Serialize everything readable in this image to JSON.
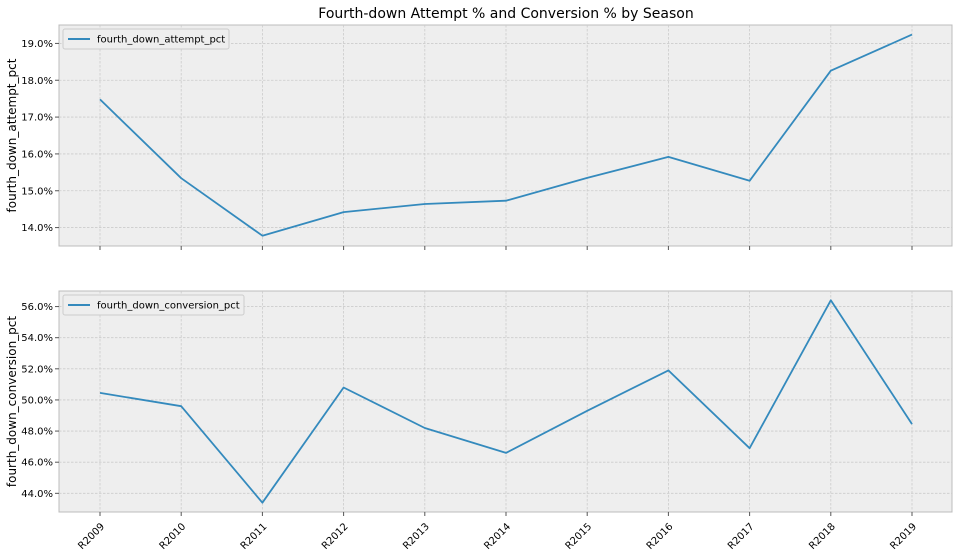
{
  "chart_data": [
    {
      "type": "line",
      "title": "Fourth-down Attempt % and Conversion % by Season",
      "xlabel": "",
      "ylabel": "fourth_down_attempt_pct",
      "categories": [
        "R2009",
        "R2010",
        "R2011",
        "R2012",
        "R2013",
        "R2014",
        "R2015",
        "R2016",
        "R2017",
        "R2018",
        "R2019"
      ],
      "series": [
        {
          "name": "fourth_down_attempt_pct",
          "values": [
            17.48,
            15.34,
            13.78,
            14.42,
            14.64,
            14.73,
            15.35,
            15.92,
            15.27,
            18.26,
            19.24
          ]
        }
      ],
      "ylim": [
        13.5,
        19.5
      ],
      "yticks": [
        14.0,
        15.0,
        16.0,
        17.0,
        18.0,
        19.0
      ],
      "ytick_labels": [
        "14.0%",
        "15.0%",
        "16.0%",
        "17.0%",
        "18.0%",
        "19.0%"
      ],
      "show_xtick_labels": false,
      "legend": "top-left",
      "grid": true,
      "color": "#348abd"
    },
    {
      "type": "line",
      "title": "",
      "xlabel": "",
      "ylabel": "fourth_down_conversion_pct",
      "categories": [
        "R2009",
        "R2010",
        "R2011",
        "R2012",
        "R2013",
        "R2014",
        "R2015",
        "R2016",
        "R2017",
        "R2018",
        "R2019"
      ],
      "series": [
        {
          "name": "fourth_down_conversion_pct",
          "values": [
            50.45,
            49.6,
            43.4,
            50.8,
            48.2,
            46.6,
            49.3,
            51.9,
            46.9,
            56.4,
            48.45
          ]
        }
      ],
      "ylim": [
        42.8,
        57.0
      ],
      "yticks": [
        44.0,
        46.0,
        48.0,
        50.0,
        52.0,
        54.0,
        56.0
      ],
      "ytick_labels": [
        "44.0%",
        "46.0%",
        "48.0%",
        "50.0%",
        "52.0%",
        "54.0%",
        "56.0%"
      ],
      "show_xtick_labels": true,
      "legend": "top-left",
      "grid": true,
      "color": "#348abd"
    }
  ]
}
